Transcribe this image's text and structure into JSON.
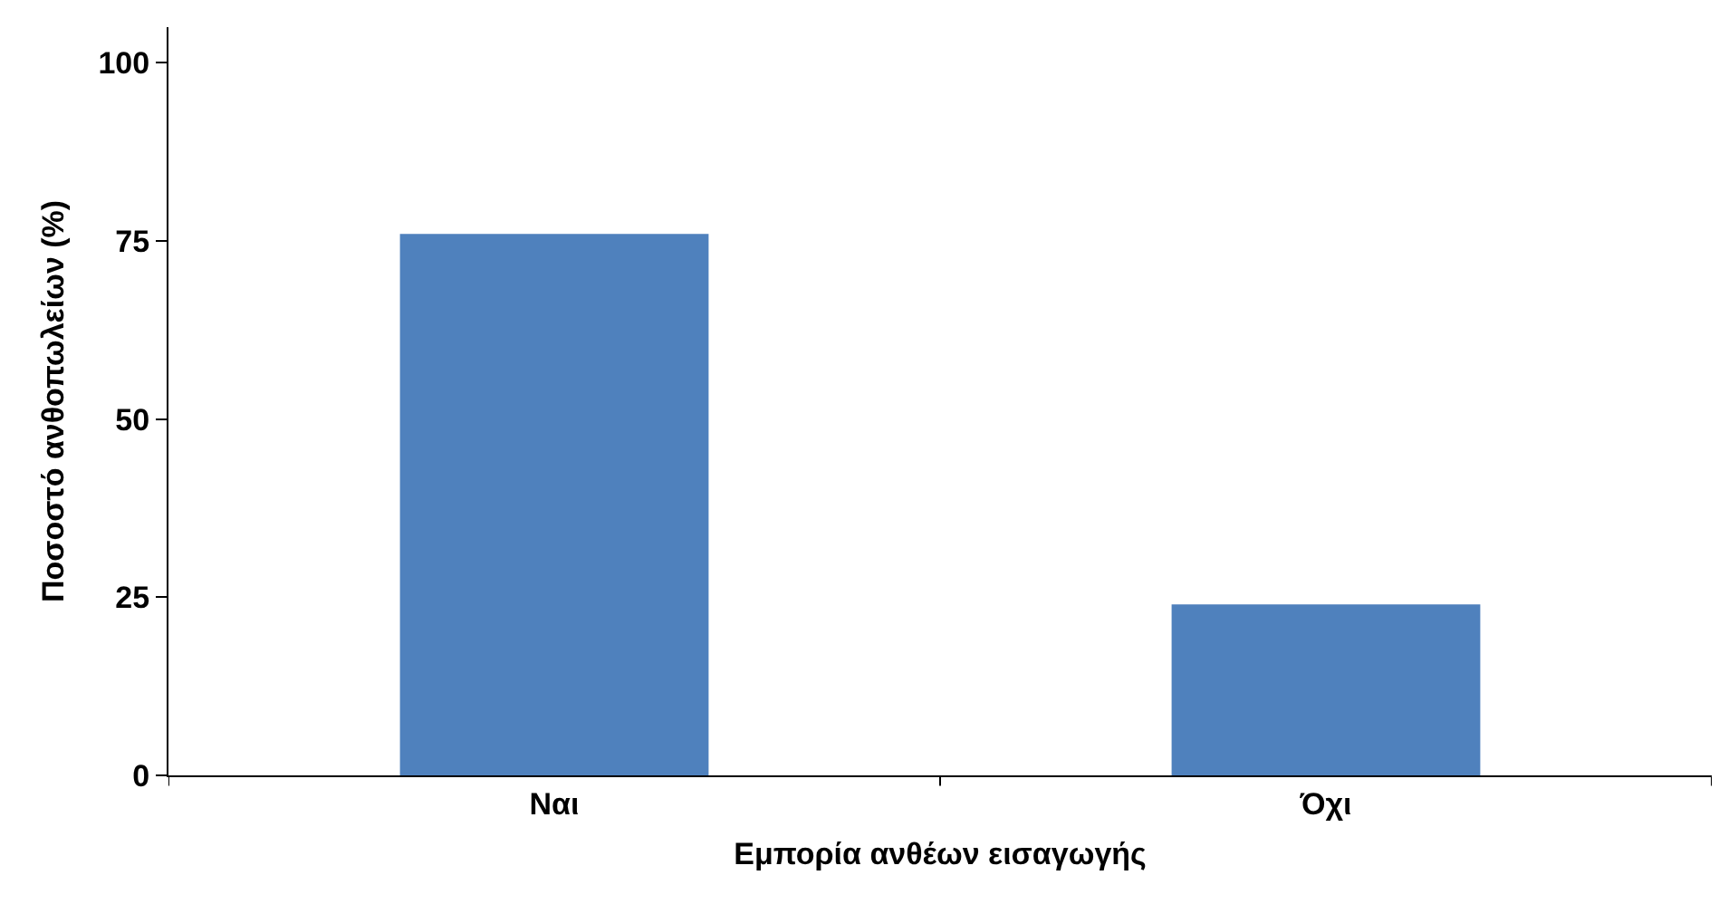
{
  "chart_data": {
    "type": "bar",
    "xlabel": "Εμπορία ανθέων εισαγωγής",
    "ylabel": "Ποσοστό ανθοπωλείων (%)",
    "categories": [
      "Ναι",
      "Όχι"
    ],
    "values": [
      76,
      24
    ],
    "color": "#4f81bd",
    "ylim": [
      0,
      105
    ],
    "yticks": [
      0,
      25,
      50,
      75,
      100
    ],
    "grid": false
  }
}
